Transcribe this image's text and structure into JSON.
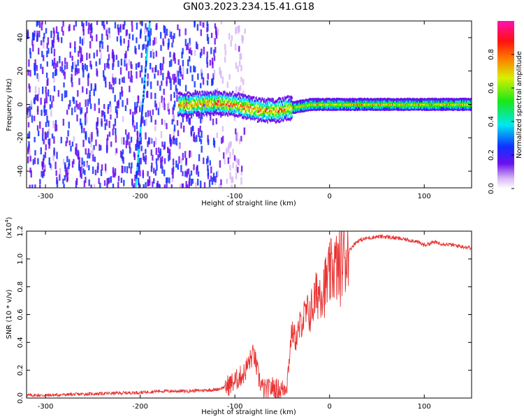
{
  "title": "GN03.2023.234.15.41.G18",
  "chart_data": [
    {
      "type": "heatmap",
      "xlabel": "Height of straight line (km)",
      "ylabel": "Frequency (Hz)",
      "xlim": [
        -320,
        150
      ],
      "ylim": [
        -50,
        50
      ],
      "x_ticks": [
        -300,
        -200,
        -100,
        0,
        100
      ],
      "x_tick_labels": [
        "-300",
        "-200",
        "-100",
        "0",
        "100"
      ],
      "y_ticks": [
        -40,
        -20,
        0,
        20,
        40
      ],
      "y_tick_labels": [
        "-40",
        "-20",
        "0",
        "20",
        "40"
      ],
      "colorbar": {
        "label": "Normalized spectral amplitude",
        "range": [
          0,
          1
        ],
        "ticks": [
          0.0,
          0.2,
          0.4,
          0.6,
          0.8
        ],
        "tick_labels": [
          "0.0",
          "0.2",
          "0.4",
          "0.6",
          "0.8"
        ],
        "colormap": "rainbow (white-violet-blue-cyan-green-yellow-red-magenta)"
      },
      "ridge": {
        "description": "narrow high-amplitude band near 0 Hz",
        "points": [
          {
            "x": -150,
            "f": 0
          },
          {
            "x": -120,
            "f": 1
          },
          {
            "x": -100,
            "f": 0
          },
          {
            "x": -80,
            "f": -3
          },
          {
            "x": -60,
            "f": -4
          },
          {
            "x": -40,
            "f": -2
          },
          {
            "x": -20,
            "f": 0
          },
          {
            "x": 0,
            "f": 0
          },
          {
            "x": 50,
            "f": 0
          },
          {
            "x": 100,
            "f": 0
          },
          {
            "x": 150,
            "f": 0
          }
        ]
      },
      "noise_region_x": [
        -320,
        -120
      ],
      "vertical_streak": {
        "x_bottom": -205,
        "x_top": -190
      }
    },
    {
      "type": "line",
      "xlabel": "Height of straight line (km)",
      "ylabel": "SNR (10 * v/v)",
      "y_multiplier": "(x10",
      "y_multiplier_exp": "4",
      "y_multiplier_close": ")",
      "xlim": [
        -320,
        150
      ],
      "ylim": [
        0,
        1.2
      ],
      "x_ticks": [
        -300,
        -200,
        -100,
        0,
        100
      ],
      "x_tick_labels": [
        "-300",
        "-200",
        "-100",
        "0",
        "100"
      ],
      "y_ticks": [
        0.0,
        0.2,
        0.4,
        0.6,
        0.8,
        1.0,
        1.2
      ],
      "y_tick_labels": [
        "0.0",
        "0.2",
        "0.4",
        "0.6",
        "0.8",
        "1.0",
        "1.2"
      ],
      "color": "#e83232",
      "series": [
        {
          "x": [
            -320,
            -300,
            -250,
            -200,
            -180,
            -150,
            -120,
            -110,
            -100,
            -90,
            -85,
            -80,
            -75,
            -70,
            -65,
            -60,
            -55,
            -50,
            -45,
            -40,
            -35,
            -30,
            -25,
            -20,
            -15,
            -10,
            -5,
            0,
            5,
            10,
            15,
            20,
            25,
            30,
            40,
            50,
            60,
            70,
            80,
            90,
            100,
            110,
            120,
            130,
            140,
            150
          ],
          "values": [
            0.02,
            0.02,
            0.03,
            0.04,
            0.05,
            0.05,
            0.06,
            0.08,
            0.12,
            0.18,
            0.26,
            0.32,
            0.15,
            0.06,
            0.06,
            0.08,
            0.06,
            0.06,
            0.1,
            0.48,
            0.42,
            0.55,
            0.6,
            0.62,
            0.72,
            0.78,
            0.8,
            0.88,
            0.95,
            0.92,
            1.02,
            1.05,
            1.1,
            1.13,
            1.15,
            1.16,
            1.16,
            1.15,
            1.14,
            1.13,
            1.1,
            1.12,
            1.11,
            1.1,
            1.09,
            1.08
          ]
        }
      ]
    }
  ]
}
